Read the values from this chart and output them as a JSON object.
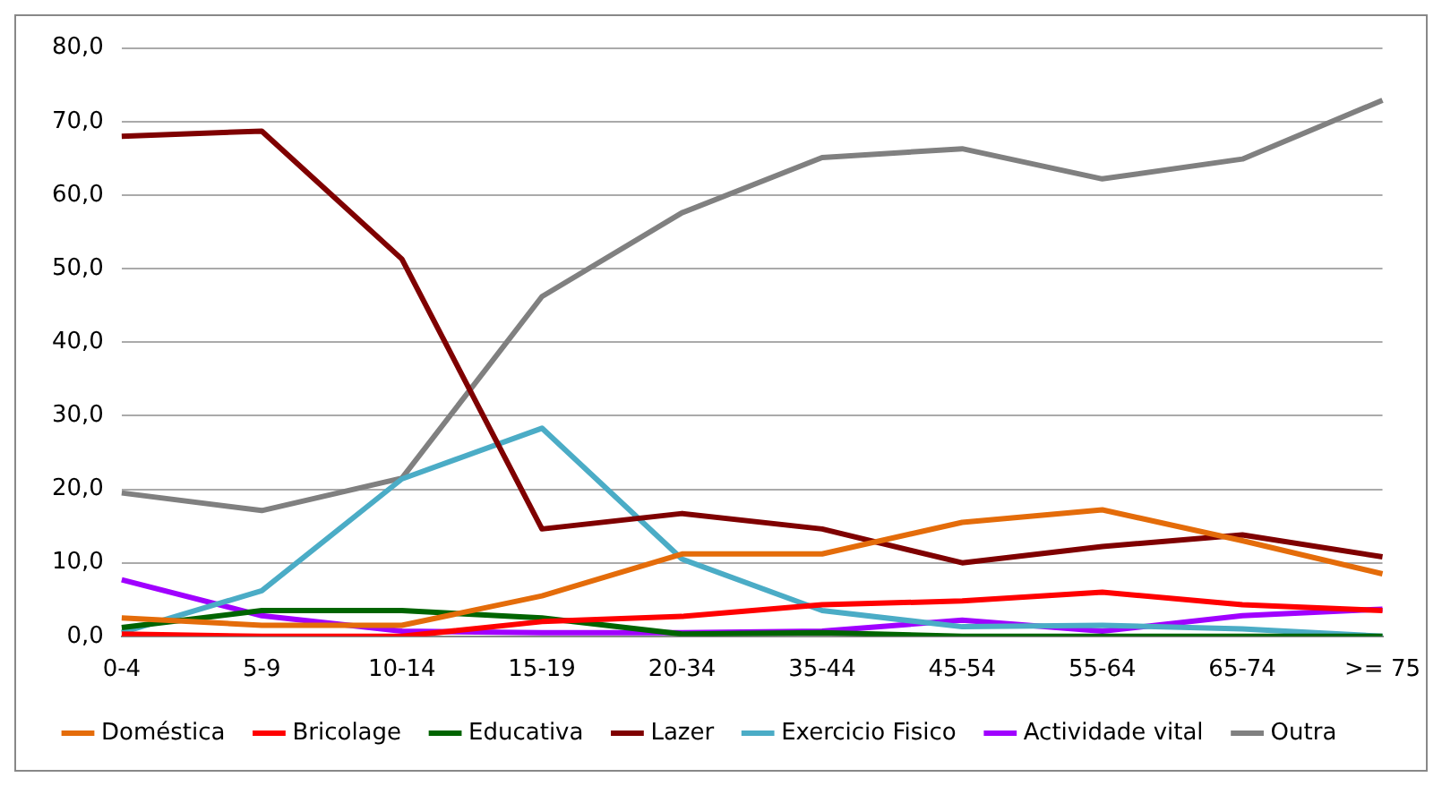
{
  "chart_data": {
    "type": "line",
    "categories": [
      "0-4",
      "5-9",
      "10-14",
      "15-19",
      "20-34",
      "35-44",
      "45-54",
      "55-64",
      "65-74",
      ">= 75"
    ],
    "ylim": [
      0,
      80
    ],
    "yticks": [
      {
        "value": 0,
        "label": "0,0"
      },
      {
        "value": 10,
        "label": "10,0"
      },
      {
        "value": 20,
        "label": "20,0"
      },
      {
        "value": 30,
        "label": "30,0"
      },
      {
        "value": 40,
        "label": "40,0"
      },
      {
        "value": 50,
        "label": "50,0"
      },
      {
        "value": 60,
        "label": "60,0"
      },
      {
        "value": 70,
        "label": "70,0"
      },
      {
        "value": 80,
        "label": "80,0"
      }
    ],
    "grid": "y",
    "legend": "bottom",
    "marker": "none",
    "line_style": "solid",
    "series": [
      {
        "name": "Doméstica",
        "color": "#e46c0a",
        "values": [
          2.5,
          1.5,
          1.5,
          5.5,
          11.2,
          11.2,
          15.5,
          17.2,
          13,
          8.5
        ]
      },
      {
        "name": "Bricolage",
        "color": "#ff0000",
        "values": [
          0.3,
          0,
          0,
          2,
          2.7,
          4.3,
          4.8,
          6,
          4.3,
          3.5
        ]
      },
      {
        "name": "Educativa",
        "color": "#006400",
        "values": [
          1.2,
          3.5,
          3.5,
          2.5,
          0.3,
          0.5,
          0,
          0,
          0,
          0
        ]
      },
      {
        "name": "Lazer",
        "color": "#7f0000",
        "values": [
          68,
          68.7,
          51.3,
          14.6,
          16.7,
          14.6,
          10,
          12.2,
          13.8,
          10.8
        ]
      },
      {
        "name": "Exercicio Fisico",
        "color": "#4bacc6",
        "values": [
          0.5,
          6.2,
          21.4,
          28.3,
          10.5,
          3.5,
          1.3,
          1.5,
          1,
          0
        ]
      },
      {
        "name": "Actividade vital",
        "color": "#a000ff",
        "values": [
          7.7,
          2.8,
          0.7,
          0.5,
          0.5,
          0.7,
          2.2,
          0.7,
          2.8,
          3.7
        ]
      },
      {
        "name": "Outra",
        "color": "#808080",
        "values": [
          19.5,
          17.1,
          21.5,
          46.2,
          57.6,
          65.1,
          66.3,
          62.2,
          64.9,
          72.9
        ]
      }
    ]
  }
}
